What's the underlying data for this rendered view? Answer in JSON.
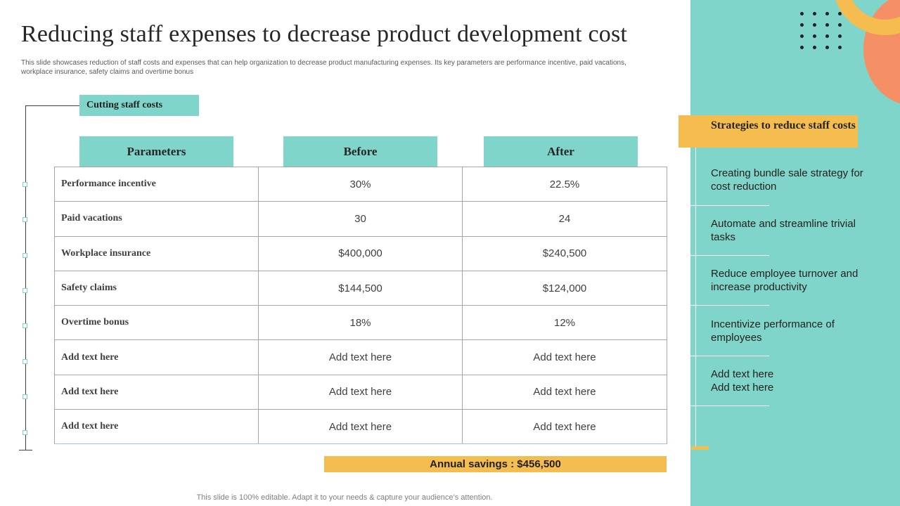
{
  "title": "Reducing staff expenses to decrease product development cost",
  "subtitle": "This slide showcases reduction of staff costs and expenses that can help organization to decrease product manufacturing expenses. Its key parameters are performance incentive, paid vacations, workplace insurance, safety claims and overtime bonus",
  "section_label": "Cutting  staff costs",
  "table": {
    "headers": [
      "Parameters",
      "Before",
      "After"
    ],
    "rows": [
      [
        "Performance  incentive",
        "30%",
        "22.5%"
      ],
      [
        "Paid  vacations",
        "30",
        "24"
      ],
      [
        "Workplace  insurance",
        "$400,000",
        "$240,500"
      ],
      [
        "Safety claims",
        "$144,500",
        "$124,000"
      ],
      [
        "Overtime  bonus",
        "18%",
        "12%"
      ],
      [
        "Add  text here",
        "Add text here",
        "Add text here"
      ],
      [
        "Add  text here",
        "Add text here",
        "Add text here"
      ],
      [
        "Add  text here",
        "Add text here",
        "Add text here"
      ]
    ]
  },
  "savings": "Annual savings : $456,500",
  "strategies": {
    "heading": "Strategies to reduce staff costs",
    "items": [
      "Creating bundle sale strategy for cost reduction",
      "Automate and streamline trivial tasks",
      "Reduce employee turnover  and increase productivity",
      "Incentivize  performance of employees",
      "Add text here Add text here"
    ]
  },
  "footer": "This slide is 100% editable. Adapt it to your needs & capture your audience’s attention.",
  "colors": {
    "teal": "#7fd5c9",
    "yellow": "#f5bd4f",
    "orange": "#f59066"
  }
}
